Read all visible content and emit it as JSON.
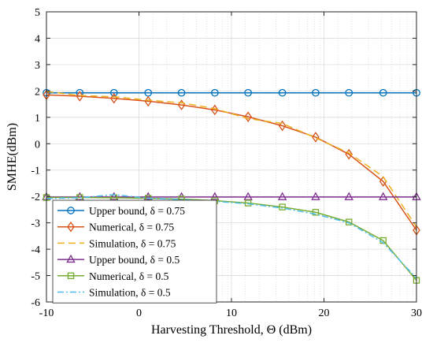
{
  "chart_data": {
    "type": "line",
    "title": "",
    "xlabel": "Harvesting Threshold, Θ (dBm)",
    "ylabel": "SMHE(dBm)",
    "xlim": [
      -10,
      30
    ],
    "ylim": [
      -6,
      5
    ],
    "xticks": [
      -10,
      0,
      10,
      20,
      30
    ],
    "yticks": [
      -6,
      -5,
      -4,
      -3,
      -2,
      -1,
      0,
      1,
      2,
      3,
      4,
      5
    ],
    "xtick_labels": [
      "-10",
      "0",
      "10",
      "20",
      "30"
    ],
    "ytick_labels": [
      "-6",
      "-5",
      "-4",
      "-3",
      "-2",
      "-1",
      "0",
      "1",
      "2",
      "3",
      "4",
      "5"
    ],
    "grid": true,
    "legend_position": "bottom-left",
    "series": [
      {
        "name": "Upper bound, δ = 0.75",
        "color": "#0072BD",
        "marker": "circle",
        "dash": "solid",
        "x": [
          -10,
          -6.4,
          -2.7,
          1,
          4.6,
          8.2,
          11.8,
          15.5,
          19.1,
          22.7,
          26.4,
          30
        ],
        "y": [
          1.93,
          1.93,
          1.93,
          1.93,
          1.93,
          1.93,
          1.93,
          1.93,
          1.93,
          1.93,
          1.93,
          1.93
        ]
      },
      {
        "name": "Numerical, δ = 0.75",
        "color": "#D95319",
        "marker": "diamond",
        "dash": "solid",
        "x": [
          -10,
          -6.4,
          -2.7,
          1,
          4.6,
          8.2,
          11.8,
          15.5,
          19.1,
          22.7,
          26.4,
          30
        ],
        "y": [
          1.85,
          1.8,
          1.72,
          1.61,
          1.47,
          1.28,
          1.02,
          0.68,
          0.25,
          -0.4,
          -1.43,
          -3.28
        ]
      },
      {
        "name": "Simulation, δ = 0.75",
        "color": "#EDB120",
        "marker": "none",
        "dash": "dashed",
        "x": [
          -10,
          -6.4,
          -2.7,
          1,
          4.6,
          8.2,
          11.8,
          15.5,
          19.1,
          22.7,
          26.4,
          30
        ],
        "y": [
          1.98,
          1.83,
          1.78,
          1.65,
          1.55,
          1.33,
          0.95,
          0.77,
          0.22,
          -0.35,
          -1.25,
          -3.15
        ]
      },
      {
        "name": "Upper bound, δ = 0.5",
        "color": "#7E2F8E",
        "marker": "triangle",
        "dash": "solid",
        "x": [
          -10,
          -6.4,
          -2.7,
          1,
          4.6,
          8.2,
          11.8,
          15.5,
          19.1,
          22.7,
          26.4,
          30
        ],
        "y": [
          -2.02,
          -2.02,
          -2.02,
          -2.02,
          -2.02,
          -2.02,
          -2.02,
          -2.02,
          -2.02,
          -2.02,
          -2.02,
          -2.02
        ]
      },
      {
        "name": "Numerical, δ = 0.5",
        "color": "#77AC30",
        "marker": "square",
        "dash": "solid",
        "x": [
          -10,
          -6.4,
          -2.7,
          1,
          4.6,
          8.2,
          11.8,
          15.5,
          19.1,
          22.7,
          26.4,
          30
        ],
        "y": [
          -2.04,
          -2.04,
          -2.05,
          -2.07,
          -2.1,
          -2.16,
          -2.25,
          -2.4,
          -2.6,
          -2.97,
          -3.67,
          -5.18
        ]
      },
      {
        "name": "Simulation, δ = 0.5",
        "color": "#4DBEEE",
        "marker": "none",
        "dash": "dashdot",
        "x": [
          -10,
          -6.4,
          -2.7,
          1,
          4.6,
          8.2,
          11.8,
          15.5,
          19.1,
          22.7,
          26.4,
          30
        ],
        "y": [
          -2.08,
          -2.05,
          -1.93,
          -2.07,
          -2.12,
          -2.18,
          -2.28,
          -2.44,
          -2.67,
          -3.0,
          -3.75,
          -5.1
        ]
      }
    ]
  }
}
